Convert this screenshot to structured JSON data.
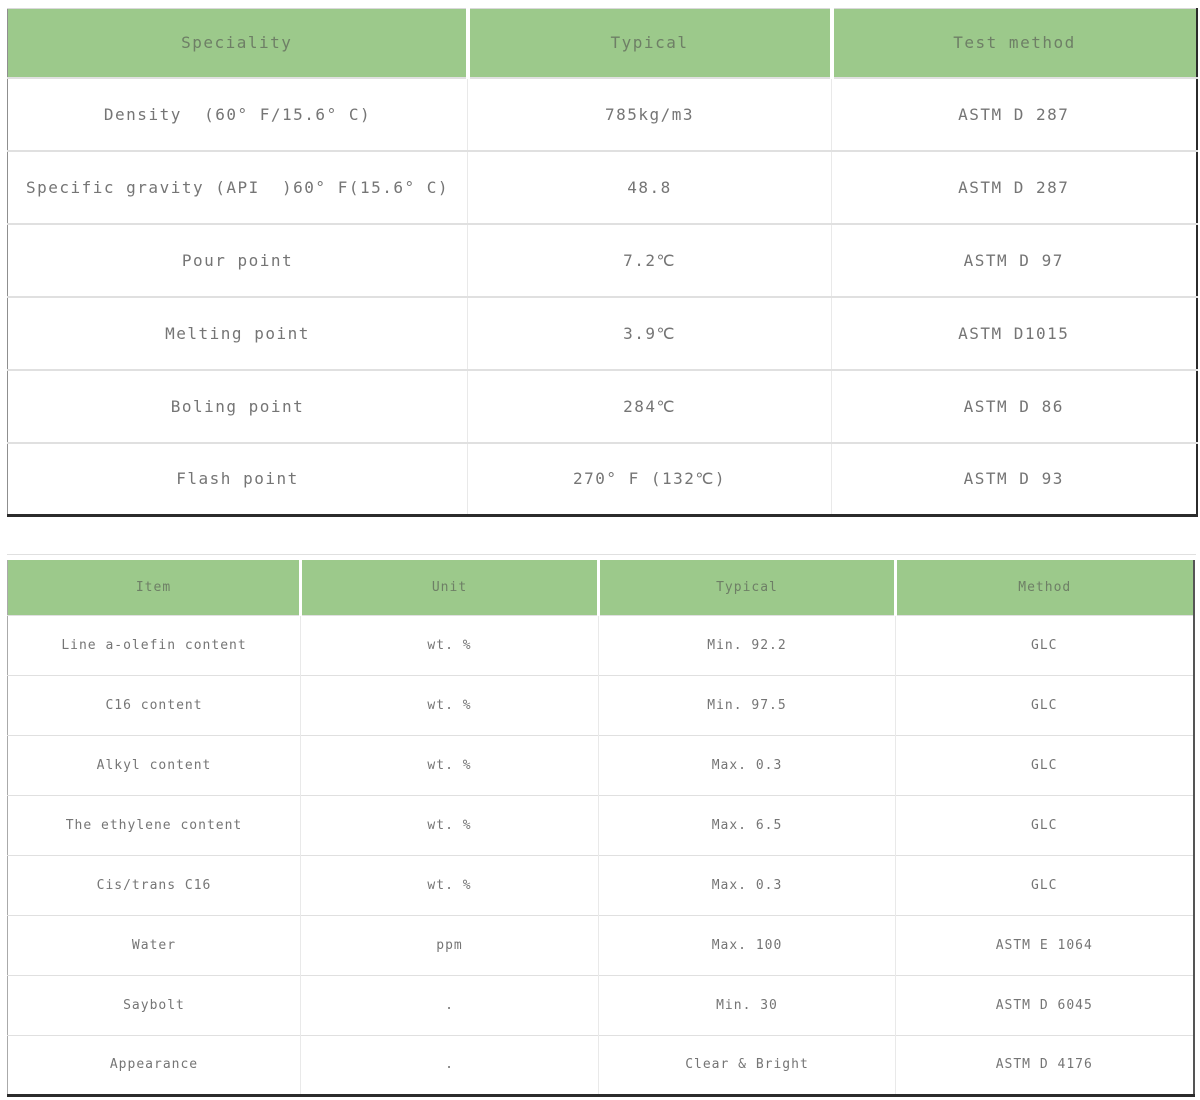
{
  "theme": {
    "header_green": "#9cc98b",
    "body_text_color": "#757575",
    "dark_border": "#2b2b2b",
    "grid_line": "#e0e0e0"
  },
  "spec_table": {
    "headers": [
      "Speciality",
      "Typical",
      "Test method"
    ],
    "rows": [
      [
        "Density  (60° F/15.6° C)",
        "785kg/m3",
        "ASTM D 287"
      ],
      [
        "Specific gravity (API  )60° F(15.6° C)",
        "48.8",
        "ASTM D 287"
      ],
      [
        "Pour point",
        "7.2℃",
        "ASTM D 97"
      ],
      [
        "Melting point",
        "3.9℃",
        "ASTM D1015"
      ],
      [
        "Boling point",
        "284℃",
        "ASTM D 86"
      ],
      [
        "Flash point",
        "270° F (132℃)",
        "ASTM D 93"
      ]
    ]
  },
  "content_table": {
    "headers": [
      "Item",
      "Unit",
      "Typical",
      "Method"
    ],
    "rows": [
      [
        "Line a-olefin content",
        "wt. %",
        "Min. 92.2",
        "GLC"
      ],
      [
        "C16 content",
        "wt. %",
        "Min. 97.5",
        "GLC"
      ],
      [
        "Alkyl content",
        "wt. %",
        "Max. 0.3",
        "GLC"
      ],
      [
        "The ethylene content",
        "wt. %",
        "Max. 6.5",
        "GLC"
      ],
      [
        "Cis/trans C16",
        "wt. %",
        "Max. 0.3",
        "GLC"
      ],
      [
        "Water",
        "ppm",
        "Max. 100",
        "ASTM E 1064"
      ],
      [
        "Saybolt",
        ".",
        "Min. 30",
        "ASTM D 6045"
      ],
      [
        "Appearance",
        ".",
        "Clear & Bright",
        "ASTM D 4176"
      ]
    ]
  }
}
